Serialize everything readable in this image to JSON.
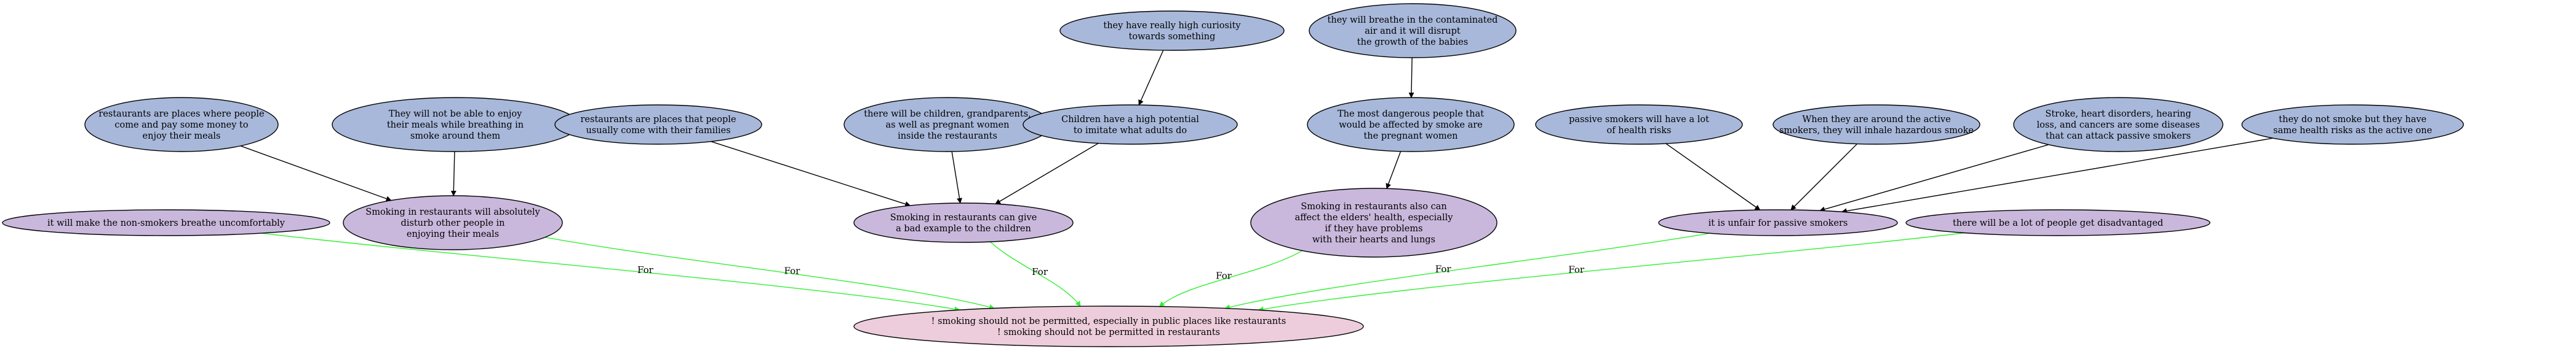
{
  "colors": {
    "premise_fill": "#a8b8da",
    "claim_fill": "#c9b8dc",
    "conclusion_fill": "#edcddb",
    "stroke": "#000000",
    "support_edge": "#000000",
    "for_edge": "#33ee33"
  },
  "nodes": [
    {
      "id": "n_restaurants_pay",
      "kind": "premise",
      "lines": [
        "restaurants are places where people",
        "come and pay some money to",
        "enjoy their meals"
      ]
    },
    {
      "id": "n_not_enjoy",
      "kind": "premise",
      "lines": [
        "They will not be able to enjoy",
        "their meals while breathing in",
        "smoke around them"
      ]
    },
    {
      "id": "n_families",
      "kind": "premise",
      "lines": [
        "restaurants are places that people",
        "usually come with their families"
      ]
    },
    {
      "id": "n_children_present",
      "kind": "premise",
      "lines": [
        "there will be children, grandparents,",
        "as well as pregnant women",
        "inside the restaurants"
      ]
    },
    {
      "id": "n_curiosity",
      "kind": "premise",
      "lines": [
        "they have really high curiosity",
        "towards something"
      ]
    },
    {
      "id": "n_imitate",
      "kind": "premise",
      "lines": [
        "Children have a high potential",
        "to imitate what adults do"
      ]
    },
    {
      "id": "n_contaminated_air",
      "kind": "premise",
      "lines": [
        "they will breathe in the contaminated",
        "air and it will disrupt",
        "the growth of the babies"
      ]
    },
    {
      "id": "n_most_dangerous",
      "kind": "premise",
      "lines": [
        "The most dangerous people that",
        "would be affected by smoke are",
        "the pregnant women"
      ]
    },
    {
      "id": "n_health_risks",
      "kind": "premise",
      "lines": [
        "passive smokers will have a lot",
        "of health risks"
      ]
    },
    {
      "id": "n_inhale",
      "kind": "premise",
      "lines": [
        "When they are around the active",
        "smokers, they will inhale hazardous smoke"
      ]
    },
    {
      "id": "n_diseases",
      "kind": "premise",
      "lines": [
        "Stroke, heart disorders, hearing",
        "loss, and cancers are some diseases",
        "that can attack passive smokers"
      ]
    },
    {
      "id": "n_same_risks",
      "kind": "premise",
      "lines": [
        "they do not smoke but they have",
        "same health risks as the active one"
      ]
    },
    {
      "id": "n_uncomfortable",
      "kind": "claim",
      "lines": [
        "it will make the non-smokers breathe uncomfortably"
      ]
    },
    {
      "id": "n_disturb",
      "kind": "claim",
      "lines": [
        "Smoking in restaurants will absolutely",
        "disturb other people in",
        "enjoying their meals"
      ]
    },
    {
      "id": "n_bad_example",
      "kind": "claim",
      "lines": [
        "Smoking in restaurants can give",
        "a bad example to the children"
      ]
    },
    {
      "id": "n_elders",
      "kind": "claim",
      "lines": [
        "Smoking in restaurants also can",
        "affect the elders' health, especially",
        "if they have problems",
        "with their hearts and lungs"
      ]
    },
    {
      "id": "n_unfair",
      "kind": "claim",
      "lines": [
        "it is unfair for passive smokers"
      ]
    },
    {
      "id": "n_disadvantaged",
      "kind": "claim",
      "lines": [
        "there will be a lot of people get disadvantaged"
      ]
    },
    {
      "id": "n_conclusion",
      "kind": "conclusion",
      "lines": [
        "! smoking should not be permitted, especially in public places like restaurants",
        "! smoking should not be permitted in restaurants"
      ]
    }
  ],
  "edges": [
    {
      "from": "n_restaurants_pay",
      "to": "n_disturb",
      "kind": "support",
      "label": ""
    },
    {
      "from": "n_not_enjoy",
      "to": "n_disturb",
      "kind": "support",
      "label": ""
    },
    {
      "from": "n_families",
      "to": "n_bad_example",
      "kind": "support",
      "label": ""
    },
    {
      "from": "n_children_present",
      "to": "n_bad_example",
      "kind": "support",
      "label": ""
    },
    {
      "from": "n_imitate",
      "to": "n_bad_example",
      "kind": "support",
      "label": ""
    },
    {
      "from": "n_curiosity",
      "to": "n_imitate",
      "kind": "support",
      "label": ""
    },
    {
      "from": "n_contaminated_air",
      "to": "n_most_dangerous",
      "kind": "support",
      "label": ""
    },
    {
      "from": "n_most_dangerous",
      "to": "n_elders",
      "kind": "support",
      "label": ""
    },
    {
      "from": "n_health_risks",
      "to": "n_unfair",
      "kind": "support",
      "label": ""
    },
    {
      "from": "n_inhale",
      "to": "n_unfair",
      "kind": "support",
      "label": ""
    },
    {
      "from": "n_diseases",
      "to": "n_unfair",
      "kind": "support",
      "label": ""
    },
    {
      "from": "n_same_risks",
      "to": "n_unfair",
      "kind": "support",
      "label": ""
    },
    {
      "from": "n_uncomfortable",
      "to": "n_conclusion",
      "kind": "for",
      "label": "For"
    },
    {
      "from": "n_disturb",
      "to": "n_conclusion",
      "kind": "for",
      "label": "For"
    },
    {
      "from": "n_bad_example",
      "to": "n_conclusion",
      "kind": "for",
      "label": "For"
    },
    {
      "from": "n_elders",
      "to": "n_conclusion",
      "kind": "for",
      "label": "For"
    },
    {
      "from": "n_unfair",
      "to": "n_conclusion",
      "kind": "for",
      "label": "For"
    },
    {
      "from": "n_disadvantaged",
      "to": "n_conclusion",
      "kind": "for",
      "label": "For"
    }
  ]
}
